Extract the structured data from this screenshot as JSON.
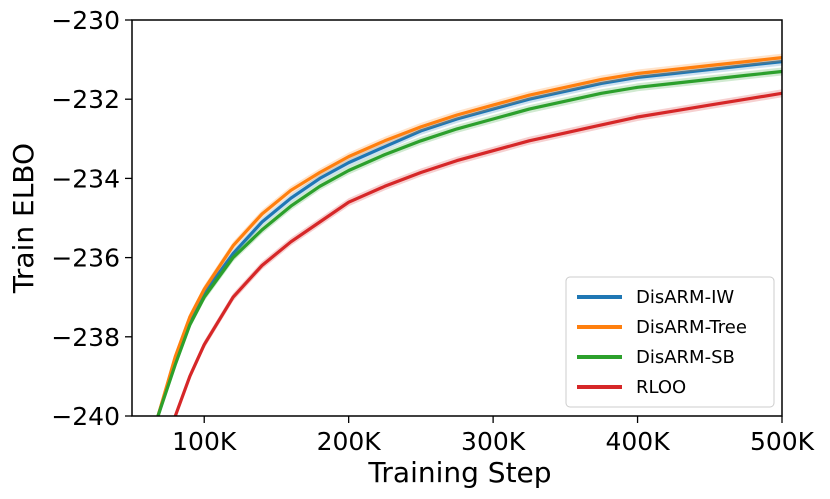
{
  "chart_data": {
    "type": "line",
    "xlabel": "Training Step",
    "ylabel": "Train ELBO",
    "xlim": [
      50000,
      500000
    ],
    "ylim": [
      -240,
      -230
    ],
    "x_ticks": [
      100000,
      200000,
      300000,
      400000,
      500000
    ],
    "x_tick_labels": [
      "100K",
      "200K",
      "300K",
      "400K",
      "500K"
    ],
    "y_ticks": [
      -240,
      -238,
      -236,
      -234,
      -232,
      -230
    ],
    "y_tick_labels": [
      "−240",
      "−238",
      "−236",
      "−234",
      "−232",
      "−230"
    ],
    "grid": false,
    "legend_position": "lower-right",
    "series": [
      {
        "name": "DisARM-IW",
        "color": "#1f77b4",
        "x": [
          68000,
          80000,
          90000,
          100000,
          120000,
          140000,
          160000,
          180000,
          200000,
          225000,
          250000,
          275000,
          300000,
          325000,
          350000,
          375000,
          400000,
          425000,
          450000,
          475000,
          500000
        ],
        "y": [
          -240.0,
          -238.6,
          -237.6,
          -236.9,
          -235.9,
          -235.1,
          -234.5,
          -234.0,
          -233.6,
          -233.2,
          -232.8,
          -232.5,
          -232.25,
          -232.0,
          -231.8,
          -231.6,
          -231.45,
          -231.35,
          -231.25,
          -231.15,
          -231.05
        ]
      },
      {
        "name": "DisARM-Tree",
        "color": "#ff7f0e",
        "x": [
          68000,
          80000,
          90000,
          100000,
          120000,
          140000,
          160000,
          180000,
          200000,
          225000,
          250000,
          275000,
          300000,
          325000,
          350000,
          375000,
          400000,
          425000,
          450000,
          475000,
          500000
        ],
        "y": [
          -240.0,
          -238.5,
          -237.5,
          -236.8,
          -235.7,
          -234.9,
          -234.3,
          -233.85,
          -233.45,
          -233.05,
          -232.7,
          -232.4,
          -232.15,
          -231.9,
          -231.7,
          -231.5,
          -231.35,
          -231.25,
          -231.15,
          -231.05,
          -230.95
        ]
      },
      {
        "name": "DisARM-SB",
        "color": "#2ca02c",
        "x": [
          68000,
          80000,
          90000,
          100000,
          120000,
          140000,
          160000,
          180000,
          200000,
          225000,
          250000,
          275000,
          300000,
          325000,
          350000,
          375000,
          400000,
          425000,
          450000,
          475000,
          500000
        ],
        "y": [
          -240.0,
          -238.7,
          -237.7,
          -237.0,
          -236.0,
          -235.3,
          -234.7,
          -234.2,
          -233.8,
          -233.4,
          -233.05,
          -232.75,
          -232.5,
          -232.25,
          -232.05,
          -231.85,
          -231.7,
          -231.6,
          -231.5,
          -231.4,
          -231.3
        ]
      },
      {
        "name": "RLOO",
        "color": "#d62728",
        "x": [
          80000,
          90000,
          100000,
          120000,
          140000,
          160000,
          180000,
          200000,
          225000,
          250000,
          275000,
          300000,
          325000,
          350000,
          375000,
          400000,
          425000,
          450000,
          475000,
          500000
        ],
        "y": [
          -240.0,
          -239.0,
          -238.2,
          -237.0,
          -236.2,
          -235.6,
          -235.1,
          -234.6,
          -234.2,
          -233.85,
          -233.55,
          -233.3,
          -233.05,
          -232.85,
          -232.65,
          -232.45,
          -232.3,
          -232.15,
          -232.0,
          -231.85
        ]
      }
    ]
  }
}
